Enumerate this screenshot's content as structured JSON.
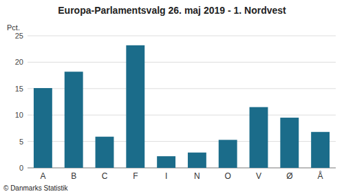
{
  "chart_data": {
    "type": "bar",
    "title": "Europa-Parlamentsvalg 26. maj 2019 - 1. Nordvest",
    "ylabel": "Pct.",
    "footer": "© Danmarks Statistik",
    "categories": [
      "A",
      "B",
      "C",
      "F",
      "I",
      "N",
      "O",
      "V",
      "Ø",
      "Å"
    ],
    "values": [
      15.1,
      18.2,
      5.9,
      23.2,
      2.2,
      2.9,
      5.3,
      11.5,
      9.5,
      6.8
    ],
    "color": "#1b6c8a",
    "ylim": [
      0,
      25
    ],
    "yticks": [
      0,
      5,
      10,
      15,
      20,
      25
    ],
    "grid": true
  }
}
